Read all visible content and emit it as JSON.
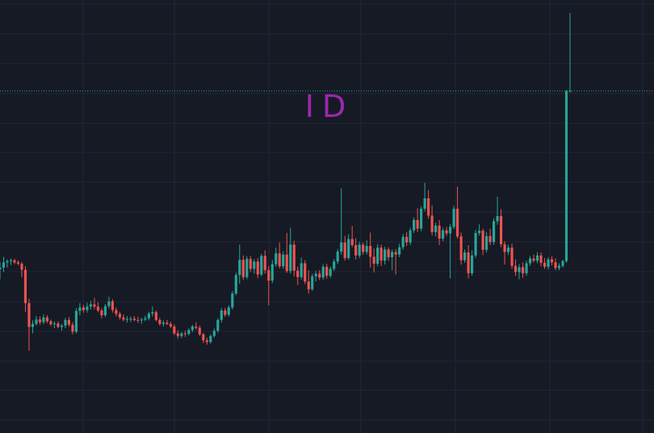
{
  "colors": {
    "background": "#161a25",
    "grid": "#232733",
    "up": "#26a69a",
    "down": "#ef5350",
    "watermark": "#9c27b0"
  },
  "chart_data": {
    "type": "candlestick",
    "title": "ID",
    "xlabel": "",
    "ylabel": "",
    "grid": true,
    "ylim": [
      0,
      100
    ],
    "last_price_line": 79,
    "candles": [
      {
        "o": 37.8,
        "h": 39.5,
        "l": 35.5,
        "c": 38.2
      },
      {
        "o": 38.2,
        "h": 40.7,
        "l": 37.2,
        "c": 39.4
      },
      {
        "o": 39.4,
        "h": 40.1,
        "l": 38.2,
        "c": 39.7
      },
      {
        "o": 39.7,
        "h": 40.3,
        "l": 38.8,
        "c": 39.9
      },
      {
        "o": 39.9,
        "h": 40.2,
        "l": 39.0,
        "c": 39.4
      },
      {
        "o": 39.4,
        "h": 39.9,
        "l": 38.7,
        "c": 39.1
      },
      {
        "o": 39.1,
        "h": 39.5,
        "l": 36.0,
        "c": 37.7
      },
      {
        "o": 37.7,
        "h": 38.5,
        "l": 28.0,
        "c": 30.0
      },
      {
        "o": 30.0,
        "h": 31.0,
        "l": 19.0,
        "c": 24.5
      },
      {
        "o": 24.5,
        "h": 26.0,
        "l": 23.0,
        "c": 25.2
      },
      {
        "o": 25.2,
        "h": 27.0,
        "l": 24.8,
        "c": 26.2
      },
      {
        "o": 26.2,
        "h": 26.9,
        "l": 25.0,
        "c": 25.6
      },
      {
        "o": 25.6,
        "h": 27.4,
        "l": 25.1,
        "c": 26.7
      },
      {
        "o": 26.7,
        "h": 27.2,
        "l": 25.4,
        "c": 25.8
      },
      {
        "o": 25.8,
        "h": 26.2,
        "l": 24.7,
        "c": 25.1
      },
      {
        "o": 25.1,
        "h": 25.8,
        "l": 24.2,
        "c": 25.3
      },
      {
        "o": 25.3,
        "h": 25.8,
        "l": 24.2,
        "c": 24.5
      },
      {
        "o": 24.5,
        "h": 25.2,
        "l": 23.6,
        "c": 24.8
      },
      {
        "o": 24.8,
        "h": 26.6,
        "l": 24.2,
        "c": 26.1
      },
      {
        "o": 26.1,
        "h": 26.8,
        "l": 24.5,
        "c": 25.0
      },
      {
        "o": 25.0,
        "h": 25.6,
        "l": 22.8,
        "c": 23.4
      },
      {
        "o": 23.4,
        "h": 28.8,
        "l": 23.0,
        "c": 28.2
      },
      {
        "o": 28.2,
        "h": 30.0,
        "l": 27.2,
        "c": 29.0
      },
      {
        "o": 29.0,
        "h": 29.6,
        "l": 27.8,
        "c": 28.4
      },
      {
        "o": 28.4,
        "h": 30.1,
        "l": 27.8,
        "c": 29.2
      },
      {
        "o": 29.2,
        "h": 30.5,
        "l": 28.5,
        "c": 29.7
      },
      {
        "o": 29.7,
        "h": 31.2,
        "l": 28.6,
        "c": 29.2
      },
      {
        "o": 29.2,
        "h": 30.2,
        "l": 27.9,
        "c": 28.3
      },
      {
        "o": 28.3,
        "h": 28.8,
        "l": 26.5,
        "c": 27.2
      },
      {
        "o": 27.2,
        "h": 29.8,
        "l": 26.8,
        "c": 29.3
      },
      {
        "o": 29.3,
        "h": 31.5,
        "l": 28.8,
        "c": 30.4
      },
      {
        "o": 30.4,
        "h": 30.9,
        "l": 27.8,
        "c": 28.4
      },
      {
        "o": 28.4,
        "h": 29.0,
        "l": 26.9,
        "c": 27.5
      },
      {
        "o": 27.5,
        "h": 28.0,
        "l": 26.2,
        "c": 26.7
      },
      {
        "o": 26.7,
        "h": 27.4,
        "l": 25.8,
        "c": 26.2
      },
      {
        "o": 26.2,
        "h": 27.0,
        "l": 25.5,
        "c": 26.3
      },
      {
        "o": 26.3,
        "h": 26.9,
        "l": 25.6,
        "c": 26.4
      },
      {
        "o": 26.4,
        "h": 27.0,
        "l": 25.8,
        "c": 26.1
      },
      {
        "o": 26.1,
        "h": 26.8,
        "l": 25.4,
        "c": 26.0
      },
      {
        "o": 26.0,
        "h": 26.6,
        "l": 25.2,
        "c": 26.2
      },
      {
        "o": 26.2,
        "h": 27.1,
        "l": 25.8,
        "c": 26.5
      },
      {
        "o": 26.5,
        "h": 28.0,
        "l": 26.0,
        "c": 27.6
      },
      {
        "o": 27.6,
        "h": 29.2,
        "l": 26.9,
        "c": 27.9
      },
      {
        "o": 27.9,
        "h": 28.3,
        "l": 25.8,
        "c": 26.1
      },
      {
        "o": 26.1,
        "h": 26.6,
        "l": 24.8,
        "c": 25.2
      },
      {
        "o": 25.2,
        "h": 26.0,
        "l": 24.6,
        "c": 25.5
      },
      {
        "o": 25.5,
        "h": 26.1,
        "l": 24.9,
        "c": 25.2
      },
      {
        "o": 25.2,
        "h": 25.7,
        "l": 24.2,
        "c": 24.6
      },
      {
        "o": 24.6,
        "h": 25.1,
        "l": 22.6,
        "c": 23.0
      },
      {
        "o": 23.0,
        "h": 23.7,
        "l": 21.8,
        "c": 22.4
      },
      {
        "o": 22.4,
        "h": 23.3,
        "l": 21.9,
        "c": 23.0
      },
      {
        "o": 23.0,
        "h": 23.6,
        "l": 22.2,
        "c": 22.9
      },
      {
        "o": 22.9,
        "h": 24.2,
        "l": 22.5,
        "c": 23.8
      },
      {
        "o": 23.8,
        "h": 25.0,
        "l": 23.3,
        "c": 24.6
      },
      {
        "o": 24.6,
        "h": 25.6,
        "l": 23.9,
        "c": 24.3
      },
      {
        "o": 24.3,
        "h": 24.8,
        "l": 22.4,
        "c": 22.8
      },
      {
        "o": 22.8,
        "h": 23.1,
        "l": 20.8,
        "c": 21.4
      },
      {
        "o": 21.4,
        "h": 22.0,
        "l": 20.4,
        "c": 21.0
      },
      {
        "o": 21.0,
        "h": 22.8,
        "l": 20.6,
        "c": 22.4
      },
      {
        "o": 22.4,
        "h": 24.1,
        "l": 22.0,
        "c": 23.6
      },
      {
        "o": 23.6,
        "h": 26.5,
        "l": 23.2,
        "c": 26.1
      },
      {
        "o": 26.1,
        "h": 28.9,
        "l": 25.5,
        "c": 28.3
      },
      {
        "o": 28.3,
        "h": 28.9,
        "l": 26.8,
        "c": 27.3
      },
      {
        "o": 27.3,
        "h": 29.5,
        "l": 26.9,
        "c": 29.0
      },
      {
        "o": 29.0,
        "h": 32.8,
        "l": 28.5,
        "c": 32.2
      },
      {
        "o": 32.2,
        "h": 37.0,
        "l": 31.8,
        "c": 36.5
      },
      {
        "o": 36.5,
        "h": 43.5,
        "l": 34.5,
        "c": 40.0
      },
      {
        "o": 40.0,
        "h": 41.0,
        "l": 35.3,
        "c": 36.0
      },
      {
        "o": 36.0,
        "h": 40.8,
        "l": 35.5,
        "c": 40.2
      },
      {
        "o": 40.2,
        "h": 40.9,
        "l": 37.2,
        "c": 37.9
      },
      {
        "o": 37.9,
        "h": 40.2,
        "l": 36.8,
        "c": 39.6
      },
      {
        "o": 39.6,
        "h": 40.4,
        "l": 35.8,
        "c": 36.6
      },
      {
        "o": 36.6,
        "h": 41.4,
        "l": 36.2,
        "c": 40.9
      },
      {
        "o": 40.9,
        "h": 42.2,
        "l": 36.8,
        "c": 37.6
      },
      {
        "o": 37.6,
        "h": 38.5,
        "l": 29.5,
        "c": 35.2
      },
      {
        "o": 35.2,
        "h": 40.0,
        "l": 34.6,
        "c": 39.0
      },
      {
        "o": 39.0,
        "h": 42.8,
        "l": 38.4,
        "c": 41.5
      },
      {
        "o": 41.5,
        "h": 44.0,
        "l": 38.0,
        "c": 38.5
      },
      {
        "o": 38.5,
        "h": 42.0,
        "l": 37.9,
        "c": 41.2
      },
      {
        "o": 41.2,
        "h": 46.2,
        "l": 37.0,
        "c": 37.4
      },
      {
        "o": 37.4,
        "h": 47.4,
        "l": 36.8,
        "c": 43.5
      },
      {
        "o": 43.5,
        "h": 44.4,
        "l": 36.2,
        "c": 37.5
      },
      {
        "o": 37.5,
        "h": 38.4,
        "l": 34.2,
        "c": 36.0
      },
      {
        "o": 36.0,
        "h": 40.5,
        "l": 35.4,
        "c": 39.2
      },
      {
        "o": 39.2,
        "h": 39.9,
        "l": 34.4,
        "c": 35.0
      },
      {
        "o": 35.0,
        "h": 37.6,
        "l": 32.2,
        "c": 33.2
      },
      {
        "o": 33.2,
        "h": 36.8,
        "l": 32.8,
        "c": 36.2
      },
      {
        "o": 36.2,
        "h": 37.4,
        "l": 35.0,
        "c": 36.8
      },
      {
        "o": 36.8,
        "h": 37.6,
        "l": 35.3,
        "c": 35.9
      },
      {
        "o": 35.9,
        "h": 39.0,
        "l": 35.4,
        "c": 38.4
      },
      {
        "o": 38.4,
        "h": 39.1,
        "l": 35.6,
        "c": 36.3
      },
      {
        "o": 36.3,
        "h": 38.4,
        "l": 35.8,
        "c": 37.9
      },
      {
        "o": 37.9,
        "h": 40.2,
        "l": 37.4,
        "c": 39.6
      },
      {
        "o": 39.6,
        "h": 42.5,
        "l": 39.0,
        "c": 41.9
      },
      {
        "o": 41.9,
        "h": 56.5,
        "l": 41.2,
        "c": 44.0
      },
      {
        "o": 44.0,
        "h": 45.5,
        "l": 39.8,
        "c": 40.4
      },
      {
        "o": 40.4,
        "h": 45.9,
        "l": 40.0,
        "c": 44.8
      },
      {
        "o": 44.8,
        "h": 47.8,
        "l": 42.9,
        "c": 43.4
      },
      {
        "o": 43.4,
        "h": 45.0,
        "l": 40.1,
        "c": 41.0
      },
      {
        "o": 41.0,
        "h": 44.2,
        "l": 40.4,
        "c": 43.5
      },
      {
        "o": 43.5,
        "h": 44.0,
        "l": 41.2,
        "c": 41.8
      },
      {
        "o": 41.8,
        "h": 44.5,
        "l": 41.2,
        "c": 43.2
      },
      {
        "o": 43.2,
        "h": 46.3,
        "l": 38.2,
        "c": 40.7
      },
      {
        "o": 40.7,
        "h": 42.6,
        "l": 37.1,
        "c": 39.1
      },
      {
        "o": 39.1,
        "h": 43.6,
        "l": 38.5,
        "c": 42.8
      },
      {
        "o": 42.8,
        "h": 43.5,
        "l": 38.6,
        "c": 39.8
      },
      {
        "o": 39.8,
        "h": 43.0,
        "l": 38.9,
        "c": 42.4
      },
      {
        "o": 42.4,
        "h": 42.9,
        "l": 39.8,
        "c": 40.6
      },
      {
        "o": 40.6,
        "h": 42.4,
        "l": 37.6,
        "c": 41.8
      },
      {
        "o": 41.8,
        "h": 42.5,
        "l": 36.6,
        "c": 41.2
      },
      {
        "o": 41.2,
        "h": 43.7,
        "l": 40.6,
        "c": 42.9
      },
      {
        "o": 42.9,
        "h": 46.0,
        "l": 42.3,
        "c": 45.3
      },
      {
        "o": 45.3,
        "h": 46.4,
        "l": 43.2,
        "c": 44.0
      },
      {
        "o": 44.0,
        "h": 47.4,
        "l": 43.4,
        "c": 46.8
      },
      {
        "o": 46.8,
        "h": 49.8,
        "l": 46.2,
        "c": 49.2
      },
      {
        "o": 49.2,
        "h": 51.9,
        "l": 46.4,
        "c": 47.2
      },
      {
        "o": 47.2,
        "h": 52.4,
        "l": 46.6,
        "c": 51.8
      },
      {
        "o": 51.8,
        "h": 57.8,
        "l": 51.2,
        "c": 54.2
      },
      {
        "o": 54.2,
        "h": 56.1,
        "l": 49.5,
        "c": 50.2
      },
      {
        "o": 50.2,
        "h": 52.6,
        "l": 45.6,
        "c": 46.4
      },
      {
        "o": 46.4,
        "h": 48.6,
        "l": 45.4,
        "c": 47.9
      },
      {
        "o": 47.9,
        "h": 49.2,
        "l": 43.4,
        "c": 44.9
      },
      {
        "o": 44.9,
        "h": 47.4,
        "l": 44.3,
        "c": 46.8
      },
      {
        "o": 46.8,
        "h": 47.6,
        "l": 45.5,
        "c": 46.1
      },
      {
        "o": 46.1,
        "h": 48.2,
        "l": 35.7,
        "c": 47.6
      },
      {
        "o": 47.6,
        "h": 52.5,
        "l": 47.1,
        "c": 51.8
      },
      {
        "o": 51.8,
        "h": 56.9,
        "l": 44.9,
        "c": 45.4
      },
      {
        "o": 45.4,
        "h": 46.3,
        "l": 38.9,
        "c": 39.9
      },
      {
        "o": 39.9,
        "h": 42.4,
        "l": 39.3,
        "c": 41.7
      },
      {
        "o": 41.7,
        "h": 43.4,
        "l": 35.7,
        "c": 36.9
      },
      {
        "o": 36.9,
        "h": 42.2,
        "l": 36.3,
        "c": 41.0
      },
      {
        "o": 41.0,
        "h": 46.9,
        "l": 40.4,
        "c": 46.2
      },
      {
        "o": 46.2,
        "h": 48.2,
        "l": 45.6,
        "c": 46.7
      },
      {
        "o": 46.7,
        "h": 47.2,
        "l": 41.1,
        "c": 42.3
      },
      {
        "o": 42.3,
        "h": 46.4,
        "l": 41.7,
        "c": 45.5
      },
      {
        "o": 45.5,
        "h": 47.2,
        "l": 43.4,
        "c": 44.1
      },
      {
        "o": 44.1,
        "h": 49.6,
        "l": 43.5,
        "c": 48.9
      },
      {
        "o": 48.9,
        "h": 54.6,
        "l": 48.1,
        "c": 50.1
      },
      {
        "o": 50.1,
        "h": 51.7,
        "l": 42.9,
        "c": 43.6
      },
      {
        "o": 43.6,
        "h": 44.3,
        "l": 38.9,
        "c": 41.8
      },
      {
        "o": 41.8,
        "h": 43.5,
        "l": 41.1,
        "c": 42.8
      },
      {
        "o": 42.8,
        "h": 43.7,
        "l": 37.9,
        "c": 38.6
      },
      {
        "o": 38.6,
        "h": 40.1,
        "l": 36.3,
        "c": 37.2
      },
      {
        "o": 37.2,
        "h": 39.0,
        "l": 35.5,
        "c": 38.3
      },
      {
        "o": 38.3,
        "h": 39.4,
        "l": 35.8,
        "c": 36.9
      },
      {
        "o": 36.9,
        "h": 39.8,
        "l": 36.3,
        "c": 39.2
      },
      {
        "o": 39.2,
        "h": 40.9,
        "l": 38.6,
        "c": 40.3
      },
      {
        "o": 40.3,
        "h": 41.2,
        "l": 39.4,
        "c": 39.8
      },
      {
        "o": 39.8,
        "h": 41.8,
        "l": 39.2,
        "c": 41.0
      },
      {
        "o": 41.0,
        "h": 41.7,
        "l": 38.5,
        "c": 39.3
      },
      {
        "o": 39.3,
        "h": 40.4,
        "l": 37.9,
        "c": 38.4
      },
      {
        "o": 38.4,
        "h": 40.6,
        "l": 37.8,
        "c": 40.1
      },
      {
        "o": 40.1,
        "h": 40.8,
        "l": 38.7,
        "c": 39.4
      },
      {
        "o": 39.4,
        "h": 40.3,
        "l": 37.6,
        "c": 38.1
      },
      {
        "o": 38.1,
        "h": 39.2,
        "l": 37.6,
        "c": 38.6
      },
      {
        "o": 38.6,
        "h": 40.0,
        "l": 38.2,
        "c": 39.7
      },
      {
        "o": 39.7,
        "h": 79.2,
        "l": 39.3,
        "c": 79.0
      },
      {
        "o": 79.0,
        "h": 97.0,
        "l": 78.7,
        "c": 79.0
      }
    ]
  }
}
